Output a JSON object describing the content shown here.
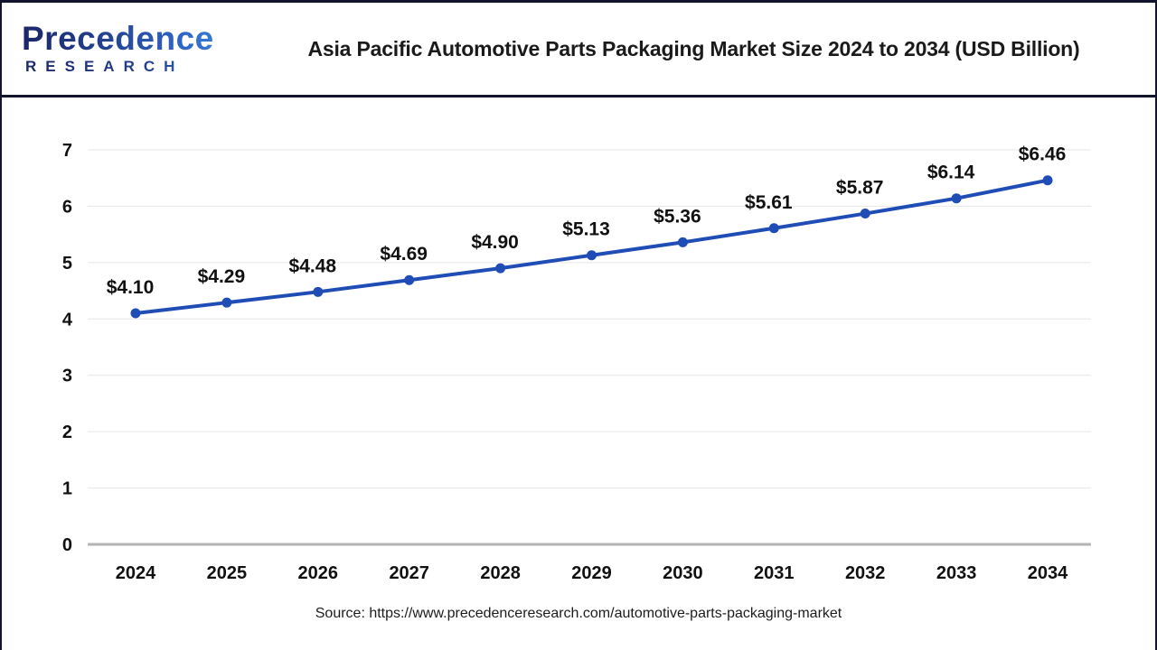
{
  "header": {
    "logo": {
      "name": "Precedence",
      "subname": "RESEARCH"
    },
    "title": "Asia Pacific Automotive Parts Packaging Market Size 2024 to 2034 (USD Billion)"
  },
  "chart_data": {
    "type": "line",
    "title": "Asia Pacific Automotive Parts Packaging Market Size 2024 to 2034 (USD Billion)",
    "categories": [
      "2024",
      "2025",
      "2026",
      "2027",
      "2028",
      "2029",
      "2030",
      "2031",
      "2032",
      "2033",
      "2034"
    ],
    "values": [
      4.1,
      4.29,
      4.48,
      4.69,
      4.9,
      5.13,
      5.36,
      5.61,
      5.87,
      6.14,
      6.46
    ],
    "point_labels": [
      "$4.10",
      "$4.29",
      "$4.48",
      "$4.69",
      "$4.90",
      "$5.13",
      "$5.36",
      "$5.61",
      "$5.87",
      "$6.14",
      "$6.46"
    ],
    "yticks": [
      "0",
      "1",
      "2",
      "3",
      "4",
      "5",
      "6",
      "7"
    ],
    "ylim": [
      0,
      7
    ],
    "xlabel": "",
    "ylabel": "",
    "grid": true,
    "legend_position": "none",
    "line_color": "#1f4db5",
    "marker": "circle"
  },
  "footer": {
    "source": "Source: https://www.precedenceresearch.com/automotive-parts-packaging-market"
  },
  "colors": {
    "accent_blue": "#1f4db5",
    "frame_navy": "#12142e",
    "grid_gray": "#e6e6e6",
    "zero_line_gray": "#b3b3b3",
    "text_dark": "#111111"
  }
}
